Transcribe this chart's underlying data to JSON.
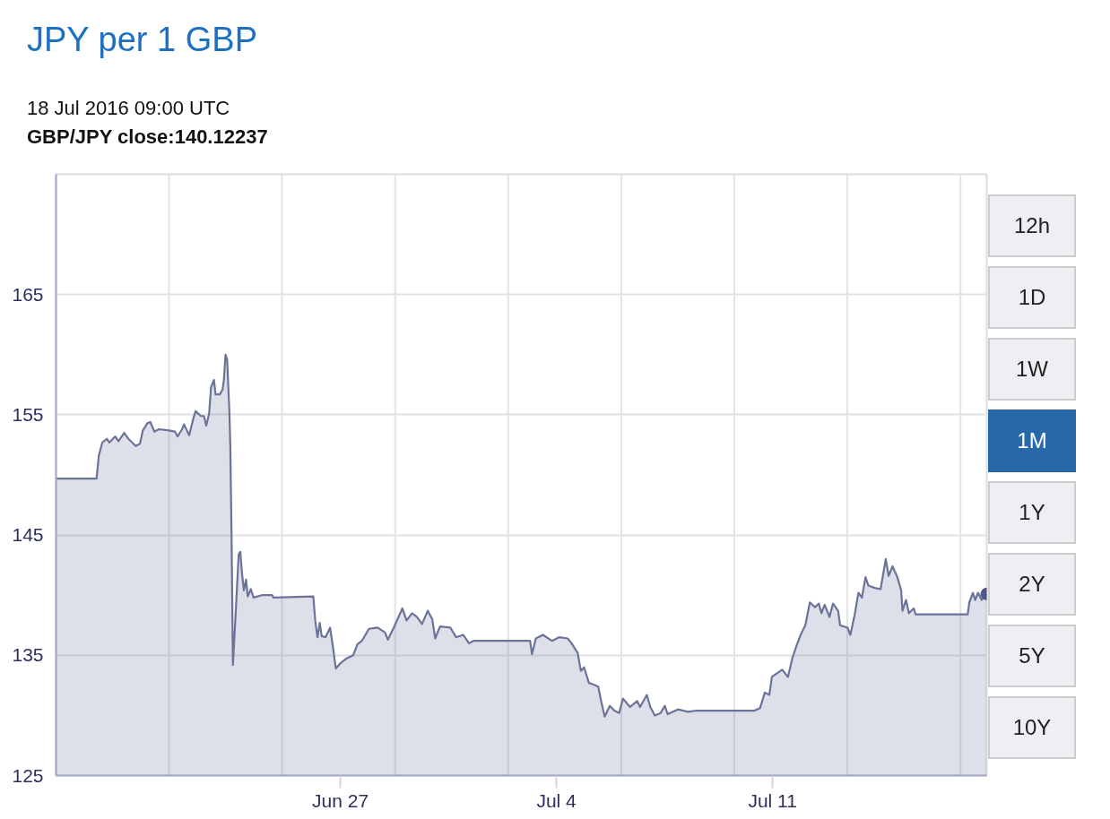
{
  "chart_data": {
    "type": "area",
    "title": "JPY per 1 GBP",
    "subtitle": "18 Jul 2016 09:00 UTC\nGBP/JPY close:140.12237",
    "xlim": [
      "2016-06-17T19:00",
      "2016-07-17T22:30"
    ],
    "xticks": [
      {
        "value": "2016-06-27",
        "label": "Jun 27"
      },
      {
        "value": "2016-07-04",
        "label": "Jul 4"
      },
      {
        "value": "2016-07-11",
        "label": "Jul 11"
      }
    ],
    "ylim": [
      125,
      175
    ],
    "yticks": [
      125,
      135,
      145,
      155,
      165
    ],
    "grid": "y",
    "ref_lines": [
      {
        "axis": "x",
        "value": "2016-06-21T10:50",
        "color": "#e3e3e3"
      },
      {
        "axis": "x",
        "value": "2016-06-25T02:40",
        "color": "#e3e3e3"
      },
      {
        "axis": "x",
        "value": "2016-06-28T18:40",
        "color": "#e3e3e3"
      },
      {
        "axis": "x",
        "value": "2016-07-02T10:30",
        "color": "#e3e3e3"
      },
      {
        "axis": "x",
        "value": "2016-07-06T02:25",
        "color": "#e3e3e3"
      },
      {
        "axis": "x",
        "value": "2016-07-09T18:20",
        "color": "#e3e3e3"
      },
      {
        "axis": "x",
        "value": "2016-07-13T10:10",
        "color": "#e3e3e3"
      },
      {
        "axis": "x",
        "value": "2016-07-17T02:05",
        "color": "#e3e3e3"
      }
    ],
    "series": [
      {
        "color": "#6b7399",
        "x": [
          "2016-06-17T19:00",
          "2016-06-19T02:30",
          "2016-06-19T04:15",
          "2016-06-19T07:00",
          "2016-06-19T10:30",
          "2016-06-19T12:30",
          "2016-06-19T17:00",
          "2016-06-19T19:30",
          "2016-06-20T00:00",
          "2016-06-20T03:15",
          "2016-06-20T09:00",
          "2016-06-20T12:15",
          "2016-06-20T14:30",
          "2016-06-20T18:00",
          "2016-06-20T20:15",
          "2016-06-20T23:30",
          "2016-06-21T03:00",
          "2016-06-21T10:45",
          "2016-06-21T15:30",
          "2016-06-21T17:30",
          "2016-06-21T21:00",
          "2016-06-21T22:30",
          "2016-06-22T02:30",
          "2016-06-22T06:00",
          "2016-06-22T07:30",
          "2016-06-22T11:30",
          "2016-06-22T14:00",
          "2016-06-22T15:45",
          "2016-06-22T18:00",
          "2016-06-22T19:30",
          "2016-06-22T21:45",
          "2016-06-22T23:00",
          "2016-06-23T02:15",
          "2016-06-23T04:30",
          "2016-06-23T05:30",
          "2016-06-23T06:45",
          "2016-06-23T08:00",
          "2016-06-23T09:45",
          "2016-06-23T10:30",
          "2016-06-23T11:30",
          "2016-06-23T12:30",
          "2016-06-23T14:30",
          "2016-06-23T17:00",
          "2016-06-23T18:15",
          "2016-06-23T19:30",
          "2016-06-23T21:00",
          "2016-06-23T22:45",
          "2016-06-24T00:00",
          "2016-06-24T02:30",
          "2016-06-24T04:30",
          "2016-06-24T11:00",
          "2016-06-24T19:00",
          "2016-06-24T20:00",
          "2016-06-26T03:00",
          "2016-06-26T04:30",
          "2016-06-26T06:15",
          "2016-06-26T08:00",
          "2016-06-26T09:30",
          "2016-06-26T12:30",
          "2016-06-26T16:00",
          "2016-06-26T18:00",
          "2016-06-26T20:30",
          "2016-06-26T23:45",
          "2016-06-27T04:15",
          "2016-06-27T10:00",
          "2016-06-27T13:15",
          "2016-06-27T16:45",
          "2016-06-27T22:15",
          "2016-06-28T05:00",
          "2016-06-28T10:45",
          "2016-06-28T13:00",
          "2016-06-28T17:30",
          "2016-06-29T00:15",
          "2016-06-29T03:30",
          "2016-06-29T07:45",
          "2016-06-29T11:30",
          "2016-06-29T15:30",
          "2016-06-29T20:00",
          "2016-06-29T23:30",
          "2016-06-30T01:45",
          "2016-06-30T05:30",
          "2016-06-30T13:30",
          "2016-06-30T18:00",
          "2016-06-30T23:30",
          "2016-07-01T04:00",
          "2016-07-01T07:30",
          "2016-07-03T03:30",
          "2016-07-03T05:00",
          "2016-07-03T08:00",
          "2016-07-03T13:30",
          "2016-07-03T20:30",
          "2016-07-04T02:00",
          "2016-07-04T08:45",
          "2016-07-04T11:45",
          "2016-07-04T16:30",
          "2016-07-04T19:00",
          "2016-07-04T21:30",
          "2016-07-05T01:15",
          "2016-07-05T04:00",
          "2016-07-05T08:30",
          "2016-07-05T10:45",
          "2016-07-05T13:30",
          "2016-07-05T17:30",
          "2016-07-05T21:00",
          "2016-07-06T00:45",
          "2016-07-06T03:45",
          "2016-07-06T09:15",
          "2016-07-06T14:45",
          "2016-07-06T17:00",
          "2016-07-06T22:15",
          "2016-07-07T01:00",
          "2016-07-07T04:30",
          "2016-07-07T09:00",
          "2016-07-07T12:15",
          "2016-07-07T14:30",
          "2016-07-07T22:30",
          "2016-07-08T06:15",
          "2016-07-08T13:00",
          "2016-07-10T10:00",
          "2016-07-10T14:15",
          "2016-07-10T18:00",
          "2016-07-10T21:30",
          "2016-07-10T23:30",
          "2016-07-11T07:30",
          "2016-07-11T12:00",
          "2016-07-11T15:30",
          "2016-07-11T19:00",
          "2016-07-11T22:15",
          "2016-07-12T01:30",
          "2016-07-12T05:00",
          "2016-07-12T09:00",
          "2016-07-12T12:00",
          "2016-07-12T14:00",
          "2016-07-12T16:30",
          "2016-07-12T20:15",
          "2016-07-12T23:00",
          "2016-07-13T03:00",
          "2016-07-13T04:30",
          "2016-07-13T10:15",
          "2016-07-13T12:30",
          "2016-07-13T15:45",
          "2016-07-13T18:45",
          "2016-07-13T21:30",
          "2016-07-14T00:15",
          "2016-07-14T02:30",
          "2016-07-14T07:30",
          "2016-07-14T12:00",
          "2016-07-14T16:00",
          "2016-07-14T18:15",
          "2016-07-14T21:15",
          "2016-07-15T01:00",
          "2016-07-15T04:00",
          "2016-07-15T05:00",
          "2016-07-15T07:45",
          "2016-07-15T10:00",
          "2016-07-15T13:45",
          "2016-07-15T15:15",
          "2016-07-17T07:45",
          "2016-07-17T09:00",
          "2016-07-17T11:45",
          "2016-07-17T13:30",
          "2016-07-17T15:45",
          "2016-07-17T18:30",
          "2016-07-17T22:30"
        ],
        "values": [
          149.7,
          149.7,
          151.6,
          152.7,
          153.0,
          152.7,
          153.2,
          152.8,
          153.5,
          153.0,
          152.4,
          152.6,
          153.7,
          154.3,
          154.4,
          153.6,
          153.8,
          153.7,
          153.6,
          153.2,
          153.8,
          154.2,
          153.3,
          154.8,
          155.3,
          154.9,
          154.9,
          154.1,
          155.1,
          157.3,
          157.9,
          156.7,
          156.7,
          157.1,
          157.9,
          160.0,
          159.6,
          155.3,
          152.3,
          144.4,
          134.2,
          138.2,
          143.4,
          143.6,
          141.9,
          140.4,
          141.3,
          139.9,
          140.5,
          139.8,
          140.0,
          140.0,
          139.8,
          139.9,
          137.9,
          136.5,
          137.7,
          136.6,
          136.5,
          137.3,
          135.9,
          133.9,
          134.3,
          134.7,
          135.0,
          135.9,
          136.2,
          137.2,
          137.3,
          136.9,
          136.3,
          137.3,
          138.9,
          137.9,
          138.5,
          138.2,
          137.6,
          138.7,
          138.0,
          136.4,
          137.4,
          137.3,
          136.5,
          136.7,
          136.0,
          136.2,
          136.2,
          135.1,
          136.4,
          136.7,
          136.2,
          136.5,
          136.4,
          136.0,
          135.2,
          133.7,
          134.0,
          132.7,
          132.6,
          132.4,
          131.2,
          129.9,
          130.8,
          130.4,
          130.2,
          131.4,
          130.7,
          131.2,
          130.7,
          131.7,
          130.7,
          130.0,
          130.2,
          130.8,
          130.1,
          130.5,
          130.3,
          130.4,
          130.4,
          130.6,
          131.9,
          131.7,
          133.2,
          133.8,
          133.2,
          134.8,
          135.9,
          136.8,
          137.5,
          139.4,
          139.0,
          139.3,
          138.5,
          139.2,
          138.2,
          139.3,
          138.7,
          137.5,
          137.3,
          136.7,
          138.3,
          140.2,
          139.8,
          141.5,
          140.8,
          140.6,
          140.5,
          143.0,
          141.6,
          142.4,
          141.5,
          140.4,
          138.7,
          139.6,
          138.5,
          138.9,
          138.4,
          138.4,
          139.4,
          140.2,
          139.6,
          140.2,
          139.6,
          140.1
        ]
      },
      {
        "type": "scatter",
        "color": "#4c5684",
        "marker": "circle",
        "x": [
          "2016-07-17T22:30"
        ],
        "values": [
          140.1
        ]
      }
    ],
    "annotations": [
      "12h",
      "1D",
      "1W",
      "1M",
      "1Y",
      "2Y",
      "5Y",
      "10Y"
    ]
  }
}
